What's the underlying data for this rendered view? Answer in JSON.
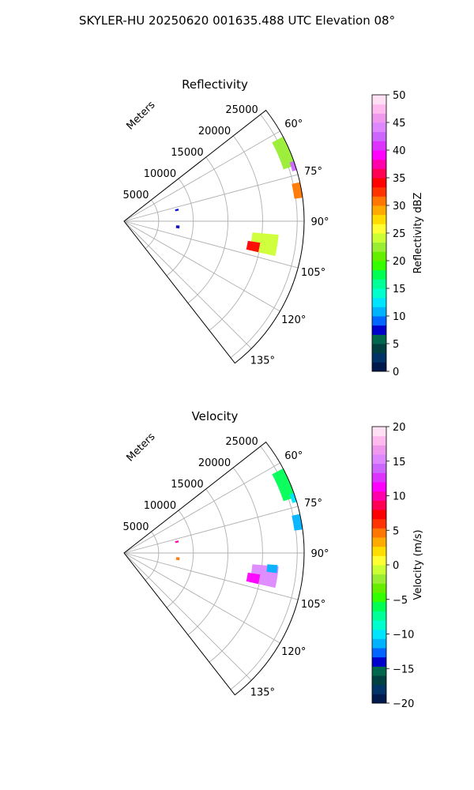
{
  "figure_title": "SKYLER-HU  20250620  001635.488 UTC Elevation 08°",
  "chart_data": [
    {
      "type": "heatmap",
      "projection": "polar-sector",
      "title": "Reflectivity",
      "radial_axis_label": "Meters",
      "radial_ticks": [
        5000,
        10000,
        15000,
        20000,
        25000
      ],
      "radial_tick_labels": [
        "5000",
        "10000",
        "15000",
        "20000",
        "25000"
      ],
      "angle_ticks": [
        60,
        75,
        90,
        105,
        120,
        135
      ],
      "angle_tick_labels": [
        "60°",
        "75°",
        "90°",
        "105°",
        "120°",
        "135°"
      ],
      "angle_range_deg": [
        52,
        142
      ],
      "range_max_m": 26000,
      "grid": true,
      "colorbar": {
        "label": "Reflectivity dBZ",
        "range": [
          0,
          50
        ],
        "ticks": [
          0,
          5,
          10,
          15,
          20,
          25,
          30,
          35,
          40,
          45,
          50
        ],
        "tick_labels": [
          "0",
          "5",
          "10",
          "15",
          "20",
          "25",
          "30",
          "35",
          "40",
          "45",
          "50"
        ],
        "colors": [
          "#001a4d",
          "#003366",
          "#004040",
          "#00664d",
          "#0000cc",
          "#0066ff",
          "#00b3ff",
          "#00e5ff",
          "#00ffcc",
          "#00ff99",
          "#00ff55",
          "#33ff00",
          "#66ee00",
          "#99ee33",
          "#ccff33",
          "#ffff33",
          "#ffdd00",
          "#ffaa00",
          "#ff7700",
          "#ff3300",
          "#ff0000",
          "#ff0055",
          "#ff00aa",
          "#ff00ff",
          "#dd33ff",
          "#cc66ff",
          "#dd88ff",
          "#ee99ee",
          "#ffbbee",
          "#ffe0f5"
        ]
      },
      "echo_regions": [
        {
          "angle_deg": 67,
          "range_m": 25300,
          "angle_span": 10,
          "range_span": 2200,
          "value_dbz": 22
        },
        {
          "angle_deg": 72,
          "range_m": 25800,
          "angle_span": 3,
          "range_span": 900,
          "value_dbz": 42
        },
        {
          "angle_deg": 80,
          "range_m": 25400,
          "angle_span": 5,
          "range_span": 1200,
          "value_dbz": 30
        },
        {
          "angle_deg": 99,
          "range_m": 20500,
          "angle_span": 8,
          "range_span": 3800,
          "value_dbz": 24
        },
        {
          "angle_deg": 101,
          "range_m": 19000,
          "angle_span": 4,
          "range_span": 1800,
          "value_dbz": 34
        },
        {
          "angle_deg": 78,
          "range_m": 7800,
          "angle_span": 2,
          "range_span": 500,
          "value_dbz": 8
        },
        {
          "angle_deg": 96,
          "range_m": 7800,
          "angle_span": 3,
          "range_span": 500,
          "value_dbz": 8
        }
      ]
    },
    {
      "type": "heatmap",
      "projection": "polar-sector",
      "title": "Velocity",
      "radial_axis_label": "Meters",
      "radial_ticks": [
        5000,
        10000,
        15000,
        20000,
        25000
      ],
      "radial_tick_labels": [
        "5000",
        "10000",
        "15000",
        "20000",
        "25000"
      ],
      "angle_ticks": [
        60,
        75,
        90,
        105,
        120,
        135
      ],
      "angle_tick_labels": [
        "60°",
        "75°",
        "90°",
        "105°",
        "120°",
        "135°"
      ],
      "angle_range_deg": [
        52,
        142
      ],
      "range_max_m": 26000,
      "grid": true,
      "colorbar": {
        "label": "Velocity (m/s)",
        "range": [
          -20,
          20
        ],
        "ticks": [
          -20,
          -15,
          -10,
          -5,
          0,
          5,
          10,
          15,
          20
        ],
        "tick_labels": [
          "−20",
          "−15",
          "−10",
          "−5",
          "0",
          "5",
          "10",
          "15",
          "20"
        ],
        "colors": [
          "#001a4d",
          "#003366",
          "#004040",
          "#00664d",
          "#0000cc",
          "#0066ff",
          "#00b3ff",
          "#00e5ff",
          "#00ffcc",
          "#00ff99",
          "#00ff55",
          "#33ff00",
          "#66ee00",
          "#99ee33",
          "#ccff33",
          "#ffff33",
          "#ffdd00",
          "#ffaa00",
          "#ff7700",
          "#ff3300",
          "#ff0000",
          "#ff0055",
          "#ff00aa",
          "#ff00ff",
          "#dd33ff",
          "#cc66ff",
          "#dd88ff",
          "#ee99ee",
          "#ffbbee",
          "#ffe0f5"
        ]
      },
      "echo_regions": [
        {
          "angle_deg": 67,
          "range_m": 25300,
          "angle_span": 10,
          "range_span": 2200,
          "value_ms": -6
        },
        {
          "angle_deg": 72,
          "range_m": 25800,
          "angle_span": 3,
          "range_span": 900,
          "value_ms": -10
        },
        {
          "angle_deg": 80,
          "range_m": 25400,
          "angle_span": 5,
          "range_span": 1200,
          "value_ms": -11
        },
        {
          "angle_deg": 99,
          "range_m": 20500,
          "angle_span": 8,
          "range_span": 3800,
          "value_ms": 15
        },
        {
          "angle_deg": 101,
          "range_m": 19000,
          "angle_span": 4,
          "range_span": 1800,
          "value_ms": 11
        },
        {
          "angle_deg": 96,
          "range_m": 21500,
          "angle_span": 3,
          "range_span": 1500,
          "value_ms": -12
        },
        {
          "angle_deg": 78,
          "range_m": 7800,
          "angle_span": 2,
          "range_span": 500,
          "value_ms": 10
        },
        {
          "angle_deg": 96,
          "range_m": 7800,
          "angle_span": 3,
          "range_span": 500,
          "value_ms": 4
        }
      ]
    }
  ]
}
